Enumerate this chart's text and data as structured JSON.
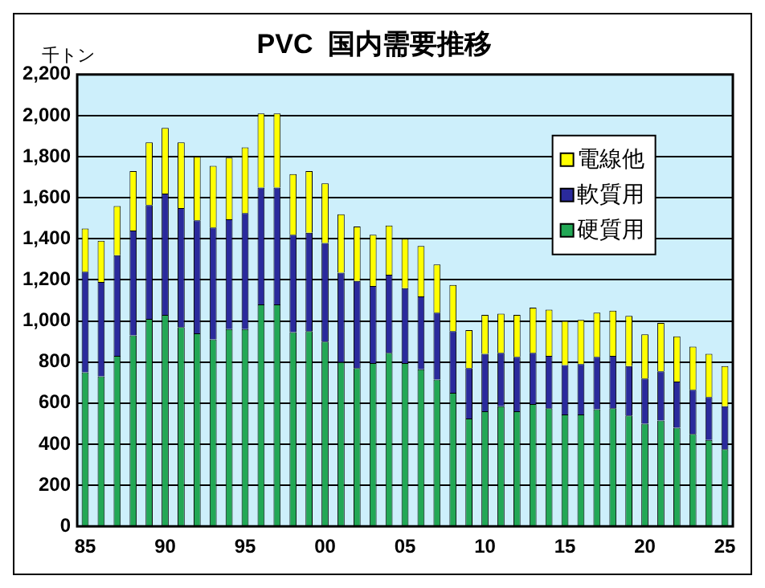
{
  "chart_data": {
    "type": "bar",
    "title": "PVC  国内需要推移",
    "ylabel": "千トン",
    "stacked": true,
    "categories": [
      "85",
      null,
      null,
      null,
      null,
      "90",
      null,
      null,
      null,
      null,
      "95",
      null,
      null,
      null,
      null,
      "00",
      null,
      null,
      null,
      null,
      "05",
      null,
      null,
      null,
      null,
      "10",
      null,
      null,
      null,
      null,
      "15",
      null,
      null,
      null,
      null,
      "20",
      null,
      null,
      null,
      null,
      "25"
    ],
    "series": [
      {
        "name": "硬質用",
        "color": "#22a855",
        "values": [
          750,
          730,
          830,
          930,
          1010,
          1030,
          970,
          940,
          910,
          960,
          960,
          1080,
          1080,
          945,
          950,
          900,
          800,
          770,
          795,
          845,
          795,
          765,
          715,
          650,
          525,
          560,
          585,
          560,
          595,
          575,
          545,
          545,
          570,
          575,
          540,
          500,
          515,
          480,
          450,
          420,
          375
        ]
      },
      {
        "name": "軟質用",
        "color": "#2a2a9c",
        "values": [
          490,
          460,
          490,
          510,
          555,
          590,
          580,
          550,
          545,
          535,
          565,
          570,
          570,
          475,
          480,
          480,
          435,
          425,
          375,
          380,
          365,
          355,
          325,
          300,
          245,
          280,
          260,
          265,
          250,
          255,
          240,
          245,
          255,
          255,
          240,
          220,
          240,
          225,
          215,
          210,
          210
        ]
      },
      {
        "name": "電線他",
        "color": "#ffff00",
        "values": [
          210,
          200,
          240,
          290,
          305,
          320,
          320,
          310,
          300,
          300,
          320,
          360,
          360,
          295,
          300,
          290,
          285,
          265,
          250,
          240,
          240,
          245,
          235,
          225,
          185,
          190,
          190,
          205,
          220,
          225,
          215,
          215,
          215,
          220,
          245,
          215,
          235,
          220,
          210,
          210,
          195
        ]
      }
    ],
    "ylim": [
      0,
      2200
    ],
    "yticks": [
      0,
      200,
      400,
      600,
      800,
      {
        "value": 1000,
        "label": "1,000"
      },
      {
        "value": 1200,
        "label": "1,200"
      },
      {
        "value": 1400,
        "label": "1,400"
      },
      {
        "value": 1600,
        "label": "1,600"
      },
      {
        "value": 1800,
        "label": "1,800"
      },
      {
        "value": 2000,
        "label": "2,000"
      },
      {
        "value": 2200,
        "label": "2,200"
      }
    ],
    "grid": "y",
    "legend": "top right"
  }
}
